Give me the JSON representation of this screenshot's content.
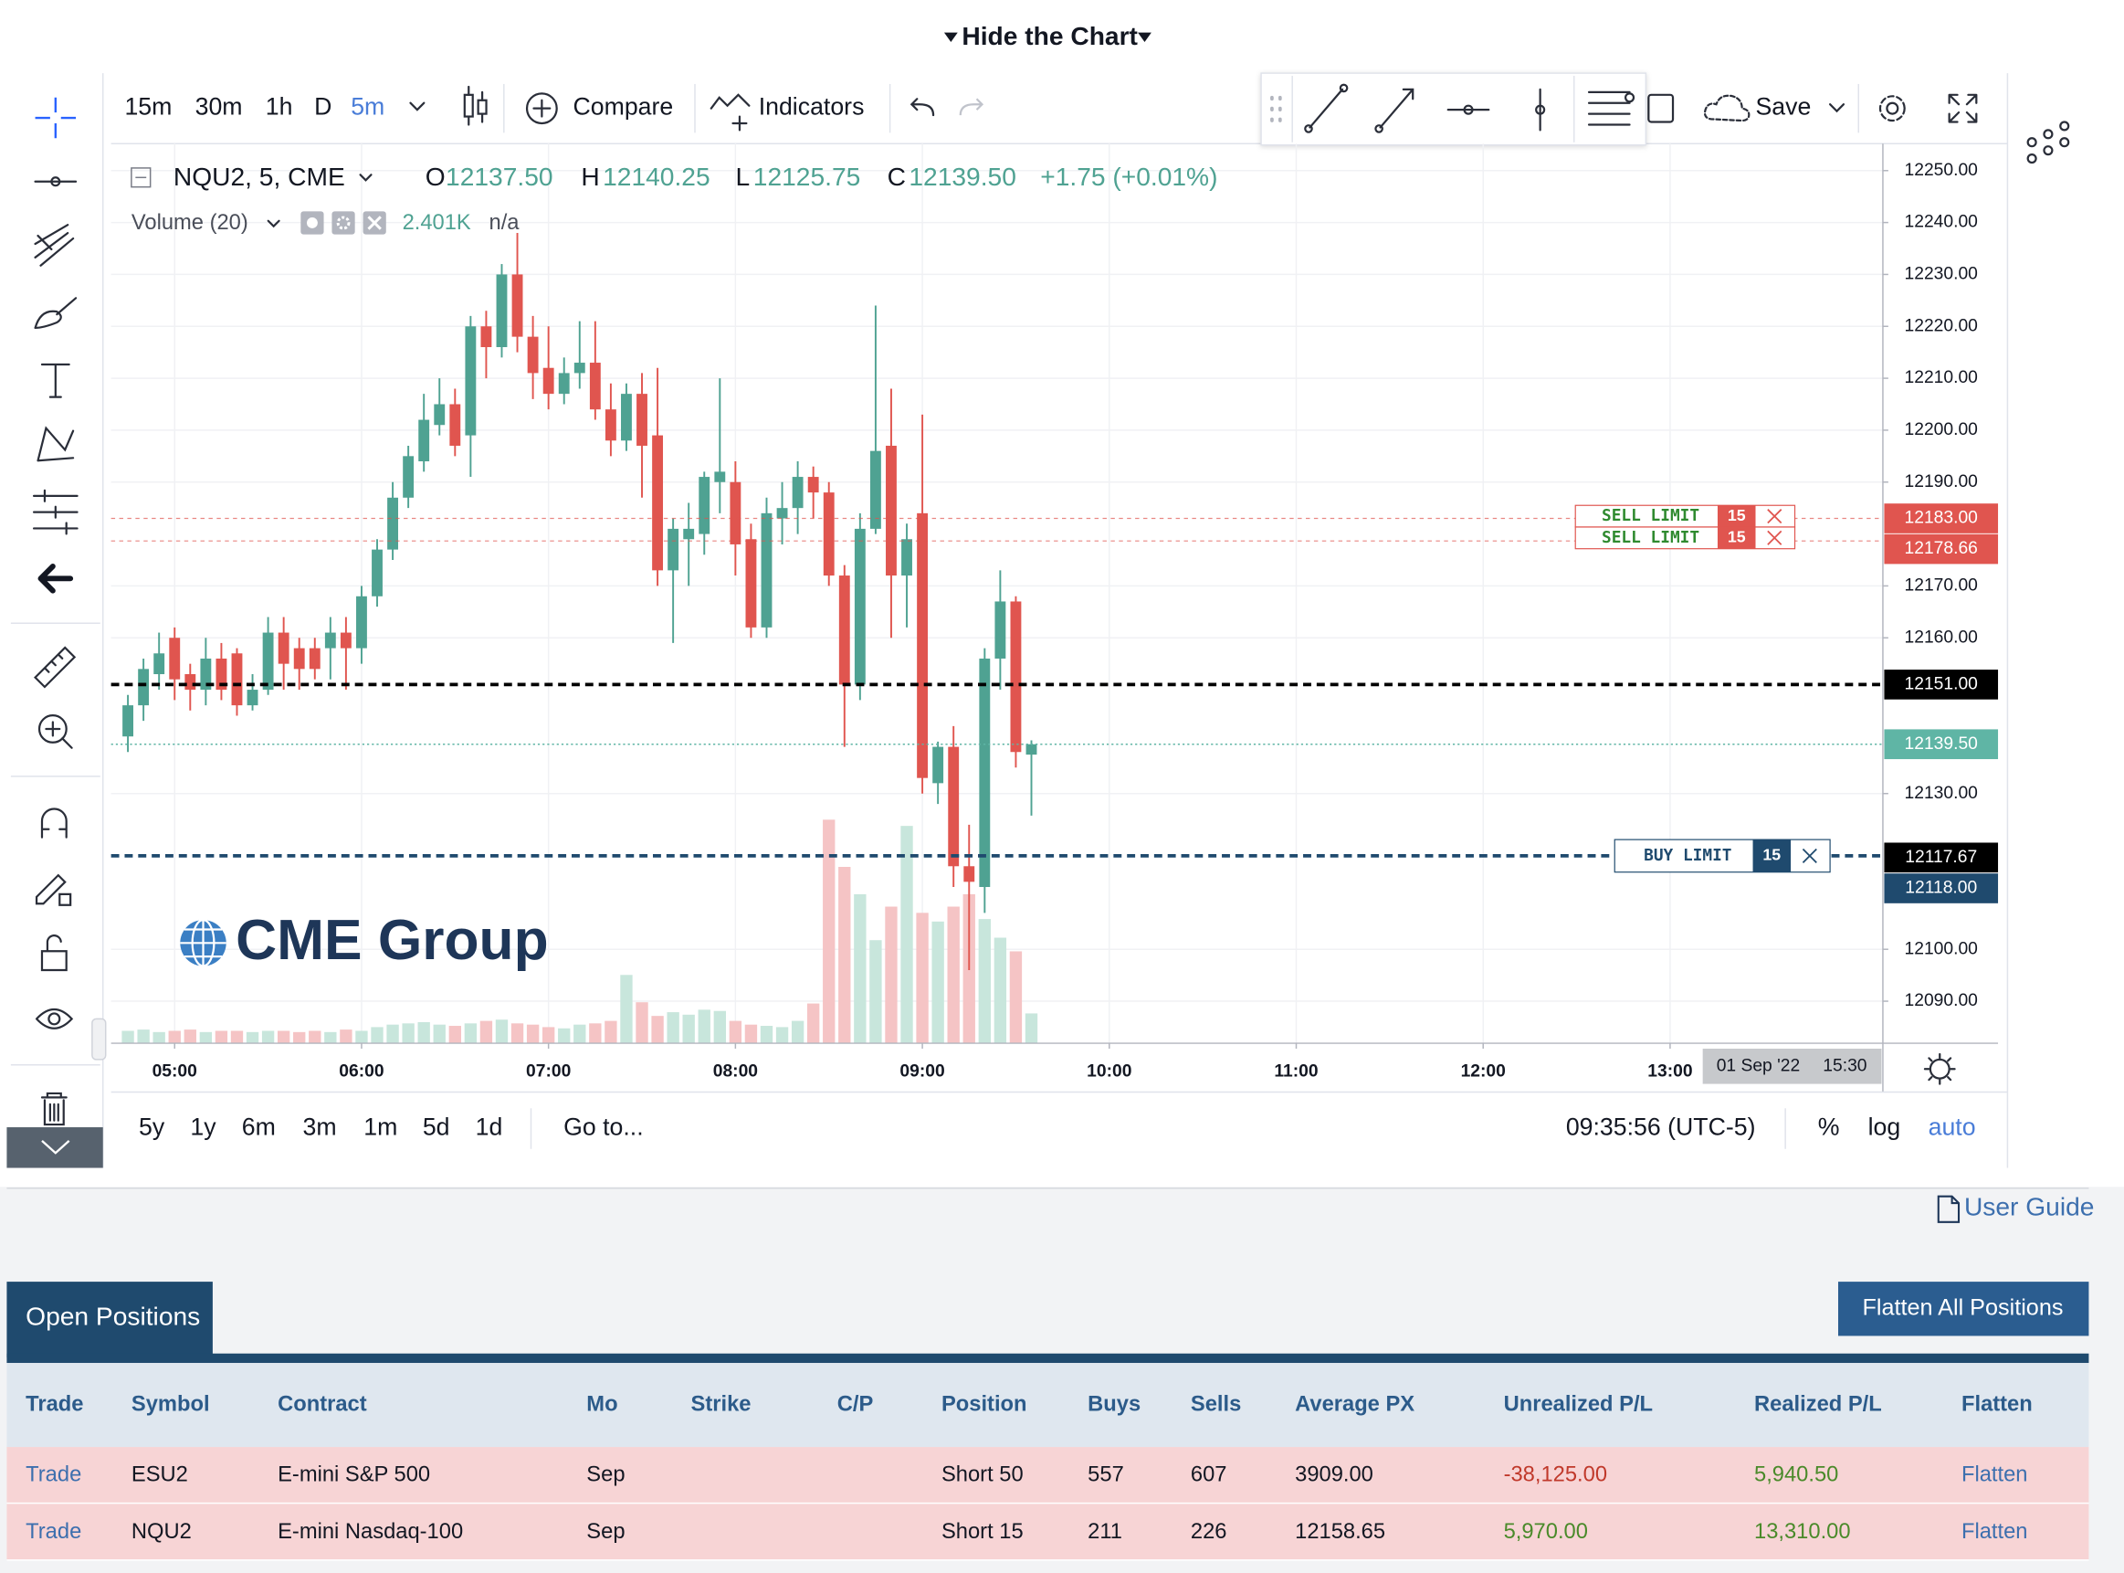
{
  "header": {
    "toggle": "Hide the Chart"
  },
  "toolbar": {
    "intervals": [
      "15m",
      "30m",
      "1h",
      "D",
      "5m"
    ],
    "active_interval": "5m",
    "compare": "Compare",
    "indicators": "Indicators",
    "save": "Save"
  },
  "legend": {
    "symbol": "NQU2, 5, CME",
    "open_label": "O",
    "open": "12137.50",
    "high_label": "H",
    "high": "12140.25",
    "low_label": "L",
    "low": "12125.75",
    "close_label": "C",
    "close": "12139.50",
    "change": "+1.75 (+0.01%)",
    "volume_study": "Volume (20)",
    "volume": "2.401K",
    "volume_na": "n/a"
  },
  "watermark": "CME Group",
  "chart_data": {
    "type": "candlestick",
    "x": [
      285,
      290,
      295,
      300,
      305,
      310,
      315,
      320,
      325,
      330,
      335,
      340,
      345,
      350,
      355,
      360,
      365,
      370,
      375,
      380,
      385,
      390,
      395,
      400,
      405,
      410,
      415,
      420,
      425,
      430,
      435,
      440,
      445,
      450,
      455,
      460,
      465,
      470,
      475,
      480,
      485,
      490,
      495,
      500,
      505,
      510,
      515,
      520,
      525,
      530,
      535,
      540,
      545,
      550,
      555,
      560,
      565,
      570,
      575
    ],
    "open": [
      12141,
      12147,
      12153,
      12160,
      12153,
      12150,
      12156,
      12157,
      12147,
      12150,
      12161,
      12158,
      12158,
      12158,
      12161,
      12158,
      12168,
      12177,
      12187,
      12194,
      12201,
      12205,
      12199,
      12220,
      12216,
      12230,
      12218,
      12212,
      12207,
      12211,
      12213,
      12204,
      12198,
      12207,
      12199,
      12173,
      12179,
      12180,
      12190,
      12190,
      12179,
      12162,
      12183,
      12185,
      12191,
      12188,
      12172,
      12151,
      12181,
      12197,
      12172,
      12184,
      12132,
      12139,
      12116,
      12112,
      12156,
      12167,
      12137.5
    ],
    "high": [
      12149,
      12156,
      12161,
      12162,
      12155,
      12160,
      12159,
      12158,
      12153,
      12164,
      12164,
      12160,
      12160,
      12164,
      12164,
      12170,
      12179,
      12190,
      12197,
      12207,
      12210,
      12208,
      12222,
      12223,
      12232,
      12238,
      12222,
      12220,
      12214,
      12221,
      12221,
      12209,
      12209,
      12211,
      12212,
      12183,
      12186,
      12192,
      12210,
      12194,
      12182,
      12187,
      12190,
      12194,
      12193,
      12190,
      12174,
      12184,
      12224,
      12208,
      12182,
      12203,
      12140,
      12143,
      12124,
      12158,
      12173,
      12168,
      12140.25
    ],
    "low": [
      12138,
      12144,
      12150,
      12148,
      12146,
      12147,
      12148,
      12145,
      12146,
      12149,
      12150,
      12150,
      12152,
      12152,
      12150,
      12155,
      12166,
      12175,
      12185,
      12192,
      12199,
      12195,
      12191,
      12210,
      12214,
      12215,
      12206,
      12204,
      12205,
      12208,
      12202,
      12195,
      12196,
      12187,
      12170,
      12159,
      12170,
      12176,
      12184,
      12172,
      12160,
      12160,
      12178,
      12180,
      12183,
      12170,
      12139,
      12148,
      12180,
      12160,
      12162,
      12130,
      12128,
      12112,
      12096,
      12107,
      12150,
      12135,
      12125.75
    ],
    "close": [
      12147,
      12154,
      12157,
      12152,
      12150,
      12156,
      12150,
      12147,
      12150,
      12161,
      12155,
      12154,
      12154,
      12161,
      12158,
      12168,
      12177,
      12187,
      12195,
      12202,
      12205,
      12197,
      12220,
      12216,
      12230,
      12218,
      12211,
      12207,
      12211,
      12213,
      12204,
      12198,
      12207,
      12197,
      12173,
      12181,
      12181,
      12191,
      12192,
      12178,
      12162,
      12184,
      12185,
      12191,
      12188,
      12172,
      12151,
      12181,
      12196,
      12172,
      12179,
      12133,
      12139,
      12116,
      12113,
      12156,
      12167,
      12138,
      12139.5
    ],
    "volume": [
      1000,
      1100,
      900,
      1000,
      1100,
      900,
      1000,
      1000,
      900,
      1000,
      1000,
      900,
      1000,
      900,
      1100,
      1000,
      1300,
      1500,
      1600,
      1700,
      1500,
      1400,
      1600,
      1800,
      1900,
      1600,
      1500,
      1300,
      1200,
      1500,
      1600,
      1800,
      5500,
      3300,
      2200,
      2500,
      2300,
      2700,
      2600,
      1800,
      1500,
      1400,
      1300,
      1800,
      3200,
      18000,
      14200,
      12000,
      8300,
      11000,
      17500,
      10500,
      9800,
      11000,
      12000,
      10000,
      8500,
      7400,
      2401
    ],
    "up_color": "#4fa292",
    "down_color": "#e0554f",
    "up_volume_color": "#c8e6dc",
    "down_volume_color": "#f5c4c5",
    "xlim": [
      279.6,
      848.3
    ],
    "xticks": [
      {
        "value": 300,
        "label": "05:00"
      },
      {
        "value": 360,
        "label": "06:00"
      },
      {
        "value": 420,
        "label": "07:00"
      },
      {
        "value": 480,
        "label": "08:00"
      },
      {
        "value": 540,
        "label": "09:00"
      },
      {
        "value": 600,
        "label": "10:00"
      },
      {
        "value": 660,
        "label": "11:00"
      },
      {
        "value": 720,
        "label": "12:00"
      },
      {
        "value": 780,
        "label": "13:00"
      }
    ],
    "ylim": [
      12081.9,
      12255.2
    ],
    "yticks": [
      {
        "value": 12250,
        "label": "12250.00"
      },
      {
        "value": 12240,
        "label": "12240.00"
      },
      {
        "value": 12230,
        "label": "12230.00"
      },
      {
        "value": 12220,
        "label": "12220.00"
      },
      {
        "value": 12210,
        "label": "12210.00"
      },
      {
        "value": 12200,
        "label": "12200.00"
      },
      {
        "value": 12190,
        "label": "12190.00"
      },
      {
        "value": 12170,
        "label": "12170.00"
      },
      {
        "value": 12160,
        "label": "12160.00"
      },
      {
        "value": 12130,
        "label": "12130.00"
      },
      {
        "value": 12100,
        "label": "12100.00"
      },
      {
        "value": 12090,
        "label": "12090.00"
      }
    ],
    "grid": true
  },
  "orders": [
    {
      "side": "SELL LIMIT",
      "qty": "15",
      "value": 12183,
      "label": "12183.00",
      "color": "#e0554f"
    },
    {
      "side": "SELL LIMIT",
      "qty": "15",
      "value": 12178.66,
      "label": "12178.66",
      "color": "#e0554f"
    },
    {
      "side": "BUY LIMIT",
      "qty": "15",
      "value": 12118,
      "label": "12118.00",
      "color": "#1f4a6e"
    }
  ],
  "price_lines": [
    {
      "value": 12151,
      "label": "12151.00",
      "color": "#000000",
      "style": "dashed"
    },
    {
      "value": 12139.5,
      "label": "12139.50",
      "color": "#5fb5a5",
      "style": "dotted"
    },
    {
      "value": 12117.67,
      "label": "12117.67",
      "color": "#000000",
      "style": "none"
    }
  ],
  "time_cursor": {
    "date": "01 Sep '22",
    "time": "15:30"
  },
  "bottom_bar": {
    "ranges": [
      "5y",
      "1y",
      "6m",
      "3m",
      "1m",
      "5d",
      "1d"
    ],
    "goto": "Go to...",
    "clock": "09:35:56 (UTC-5)",
    "percent": "%",
    "log": "log",
    "auto": "auto"
  },
  "user_guide": "User Guide",
  "positions": {
    "tab": "Open Positions",
    "flatten_all": "Flatten All Positions",
    "columns": [
      {
        "key": "trade",
        "label": "Trade"
      },
      {
        "key": "symbol",
        "label": "Symbol"
      },
      {
        "key": "contract",
        "label": "Contract"
      },
      {
        "key": "mo",
        "label": "Mo"
      },
      {
        "key": "strike",
        "label": "Strike"
      },
      {
        "key": "cp",
        "label": "C/P"
      },
      {
        "key": "position",
        "label": "Position"
      },
      {
        "key": "buys",
        "label": "Buys"
      },
      {
        "key": "sells",
        "label": "Sells"
      },
      {
        "key": "avg_px",
        "label": "Average PX"
      },
      {
        "key": "unrealized",
        "label": "Unrealized P/L"
      },
      {
        "key": "realized",
        "label": "Realized P/L"
      },
      {
        "key": "flatten",
        "label": "Flatten"
      }
    ],
    "rows": [
      {
        "trade": "Trade",
        "symbol": "ESU2",
        "contract": "E-mini S&P 500",
        "mo": "Sep",
        "position": "Short 50",
        "buys": "557",
        "sells": "607",
        "avg_px": "3909.00",
        "unrealized": "-38,125.00",
        "realized": "5,940.50",
        "flatten": "Flatten"
      },
      {
        "trade": "Trade",
        "symbol": "NQU2",
        "contract": "E-mini Nasdaq-100",
        "mo": "Sep",
        "position": "Short 15",
        "buys": "211",
        "sells": "226",
        "avg_px": "12158.65",
        "unrealized": "5,970.00",
        "realized": "13,310.00",
        "flatten": "Flatten"
      }
    ]
  }
}
